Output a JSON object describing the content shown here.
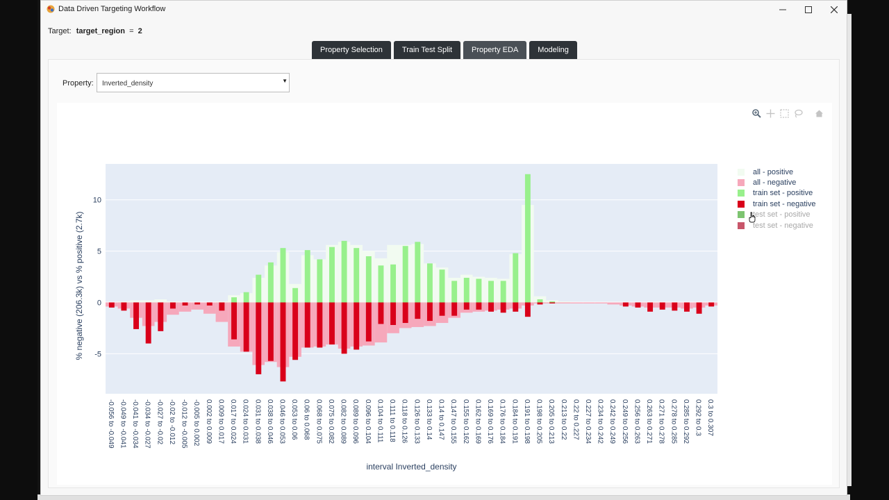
{
  "window": {
    "title": "Data Driven Targeting Workflow",
    "controls": {
      "minimize": "—",
      "maximize": "☐",
      "close": "✕"
    }
  },
  "target": {
    "label": "Target:",
    "name": "target_region",
    "equals": "=",
    "value": "2"
  },
  "tabs": [
    {
      "label": "Property Selection",
      "active": false
    },
    {
      "label": "Train Test Split",
      "active": false
    },
    {
      "label": "Property EDA",
      "active": true
    },
    {
      "label": "Modeling",
      "active": false
    }
  ],
  "property": {
    "label": "Property:",
    "selected": "Inverted_density"
  },
  "modebar": {
    "icons": [
      "zoom-icon",
      "pan-icon",
      "box-select-icon",
      "lasso-select-icon",
      "reset-axes-home-icon"
    ]
  },
  "legend": [
    {
      "label": "all - positive",
      "color": "#f2fbf1",
      "dim": false
    },
    {
      "label": "all - negative",
      "color": "#f6a8bb",
      "dim": false
    },
    {
      "label": "train set - positive",
      "color": "#98f08c",
      "dim": false
    },
    {
      "label": "train set - negative",
      "color": "#d9001a",
      "dim": false
    },
    {
      "label": "test set - positive",
      "color": "#7dc470",
      "dim": true
    },
    {
      "label": "test set - negative",
      "color": "#c8566a",
      "dim": true
    }
  ],
  "chart_data": {
    "type": "bar",
    "barmode": "overlay",
    "xlabel": "interval Inverted_density",
    "ylabel": "% negative (206.3k) vs % positive (2.7k)",
    "ylim": [
      -8.9,
      13.5
    ],
    "yticks": [
      -5,
      0,
      5,
      10
    ],
    "grid": true,
    "legend_position": "right",
    "categories": [
      "-0.056 to -0.049",
      "-0.049 to -0.041",
      "-0.041 to -0.034",
      "-0.034 to -0.027",
      "-0.027 to -0.02",
      "-0.02 to -0.012",
      "-0.012 to -0.005",
      "-0.005 to 0.002",
      "0.002 to 0.009",
      "0.009 to 0.017",
      "0.017 to 0.024",
      "0.024 to 0.031",
      "0.031 to 0.038",
      "0.038 to 0.046",
      "0.046 to 0.053",
      "0.053 to 0.06",
      "0.06 to 0.068",
      "0.068 to 0.075",
      "0.075 to 0.082",
      "0.082 to 0.089",
      "0.089 to 0.096",
      "0.096 to 0.104",
      "0.104 to 0.111",
      "0.111 to 0.118",
      "0.118 to 0.126",
      "0.126 to 0.133",
      "0.133 to 0.14",
      "0.14 to 0.147",
      "0.147 to 0.155",
      "0.155 to 0.162",
      "0.162 to 0.169",
      "0.169 to 0.176",
      "0.176 to 0.184",
      "0.184 to 0.191",
      "0.191 to 0.198",
      "0.198 to 0.205",
      "0.205 to 0.213",
      "0.213 to 0.22",
      "0.22 to 0.227",
      "0.227 to 0.234",
      "0.234 to 0.242",
      "0.242 to 0.249",
      "0.249 to 0.256",
      "0.256 to 0.263",
      "0.263 to 0.271",
      "0.271 to 0.278",
      "0.278 to 0.285",
      "0.285 to 0.292",
      "0.292 to 0.3",
      "0.3 to 0.307"
    ],
    "series": [
      {
        "name": "all - positive",
        "color": "#f2fbf1",
        "values": [
          0,
          0.1,
          0.2,
          0.2,
          0.3,
          0.1,
          0,
          0,
          0,
          0.1,
          0.7,
          0.9,
          2.4,
          3.6,
          4.9,
          1.8,
          4.6,
          4.2,
          5.6,
          5.9,
          5.6,
          5.0,
          4.3,
          5.6,
          5.6,
          5.7,
          3.8,
          3.4,
          2.4,
          2.7,
          2.5,
          2.4,
          2.3,
          4.7,
          9.5,
          0.6,
          0.2,
          0.1,
          0,
          0,
          0,
          0,
          0,
          0,
          0,
          0,
          0,
          0,
          0,
          0
        ]
      },
      {
        "name": "all - negative",
        "color": "#f6a8bb",
        "values": [
          -0.4,
          -0.6,
          -1.5,
          -2.3,
          -1.9,
          -1.2,
          -0.9,
          -0.7,
          -1.1,
          -1.9,
          -4.3,
          -4.8,
          -6.1,
          -5.8,
          -6.3,
          -5.3,
          -4.4,
          -4.3,
          -4.1,
          -4.5,
          -4.3,
          -4.2,
          -3.9,
          -3.0,
          -2.5,
          -2.4,
          -2.3,
          -2.0,
          -1.5,
          -1.0,
          -0.9,
          -0.8,
          -0.7,
          -0.6,
          -0.3,
          -0.1,
          -0.1,
          -0.1,
          -0.1,
          -0.1,
          -0.1,
          -0.2,
          -0.3,
          -0.4,
          -0.5,
          -0.5,
          -0.5,
          -0.6,
          -0.5,
          -0.3
        ]
      },
      {
        "name": "train set - positive",
        "color": "#98f08c",
        "values": [
          0,
          0,
          0,
          0,
          0,
          0,
          0,
          0,
          0,
          0,
          0.5,
          1.0,
          2.7,
          3.9,
          5.3,
          1.4,
          5.1,
          4.2,
          5.4,
          6.0,
          5.3,
          4.5,
          3.6,
          3.7,
          5.5,
          5.9,
          3.8,
          3.2,
          2.1,
          2.4,
          2.3,
          2.1,
          2.1,
          4.8,
          12.5,
          0.3,
          0.1,
          0,
          0,
          0,
          0,
          0,
          0,
          0,
          0,
          0,
          0,
          0,
          0,
          0
        ]
      },
      {
        "name": "train set - negative",
        "color": "#d9001a",
        "values": [
          -0.5,
          -0.8,
          -2.6,
          -4.0,
          -2.8,
          -0.6,
          -0.3,
          -0.2,
          -0.3,
          -0.8,
          -3.6,
          -4.8,
          -7.0,
          -5.7,
          -7.7,
          -5.6,
          -4.4,
          -4.4,
          -4.1,
          -5.0,
          -4.6,
          -3.8,
          -2.1,
          -2.2,
          -2.0,
          -1.6,
          -1.8,
          -1.3,
          -1.3,
          -0.7,
          -0.7,
          -0.9,
          -1.0,
          -0.9,
          -1.4,
          -0.2,
          -0.1,
          0,
          0,
          0,
          0,
          0,
          -0.4,
          -0.5,
          -0.9,
          -0.7,
          -0.8,
          -0.9,
          -1.1,
          -0.4
        ]
      }
    ]
  }
}
